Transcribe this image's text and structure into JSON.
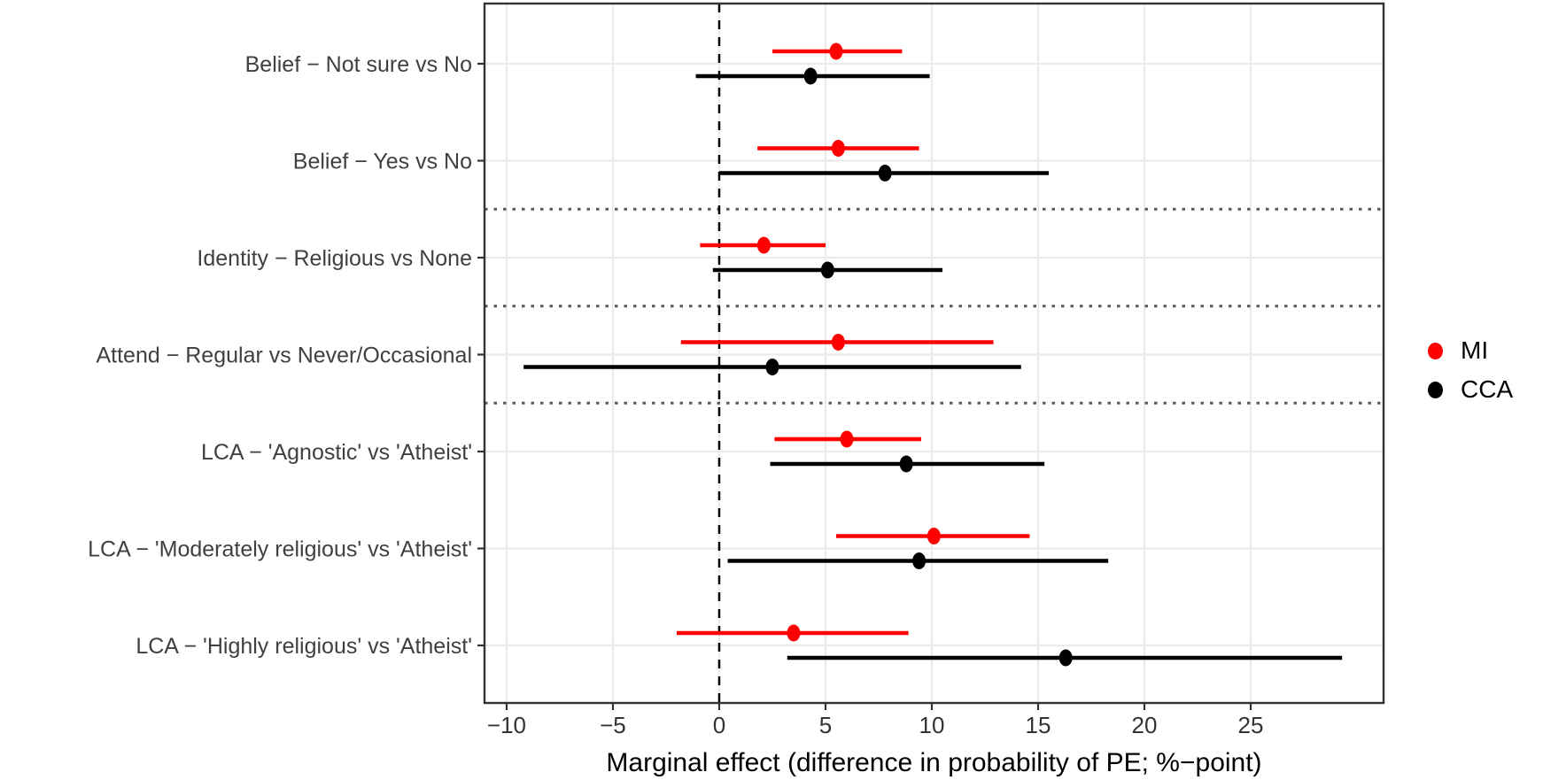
{
  "chart_data": {
    "type": "scatter",
    "subtype": "forest-plot-dot-interval",
    "title": "",
    "xlabel": "Marginal effect (difference in probability of PE; %−point)",
    "ylabel": "",
    "xlim": [
      -11.04,
      31.25
    ],
    "x_ticks": [
      -10,
      -5,
      0,
      5,
      10,
      15,
      20,
      25
    ],
    "x_tick_labels": [
      "−10",
      "−5",
      "0",
      "5",
      "10",
      "15",
      "20",
      "25"
    ],
    "grid": "major-only",
    "legend_position": "right",
    "reference_line_x": 0,
    "separator_between_rows": [
      [
        2,
        3
      ],
      [
        3,
        4
      ],
      [
        4,
        5
      ]
    ],
    "categories": [
      "Belief − Not sure vs No",
      "Belief − Yes vs No",
      "Identity − Religious vs None",
      "Attend − Regular vs Never/Occasional",
      "LCA − 'Agnostic' vs 'Atheist'",
      "LCA − 'Moderately religious' vs 'Atheist'",
      "LCA − 'Highly religious' vs 'Atheist'"
    ],
    "series": [
      {
        "name": "MI",
        "color": "#FF0000",
        "estimates": [
          5.5,
          5.6,
          2.1,
          5.6,
          6.0,
          10.1,
          3.5
        ],
        "lower": [
          2.5,
          1.8,
          -0.9,
          -1.8,
          2.6,
          5.5,
          -2.0
        ],
        "upper": [
          8.6,
          9.4,
          5.0,
          12.9,
          9.5,
          14.6,
          8.9
        ]
      },
      {
        "name": "CCA",
        "color": "#000000",
        "estimates": [
          4.3,
          7.8,
          5.1,
          2.5,
          8.8,
          9.4,
          16.3
        ],
        "lower": [
          -1.1,
          0.0,
          -0.3,
          -9.2,
          2.4,
          0.4,
          3.2
        ],
        "upper": [
          9.9,
          15.5,
          10.5,
          14.2,
          15.3,
          18.3,
          29.3
        ]
      }
    ]
  },
  "legend": {
    "items": [
      {
        "label": "MI",
        "color": "#FF0000"
      },
      {
        "label": "CCA",
        "color": "#000000"
      }
    ]
  },
  "colors": {
    "panel_border": "#333333",
    "gridline": "#EBEBEB",
    "separator": "#595959",
    "reference_line": "#000000",
    "category_label": "#404040",
    "tick_label": "#333333"
  }
}
